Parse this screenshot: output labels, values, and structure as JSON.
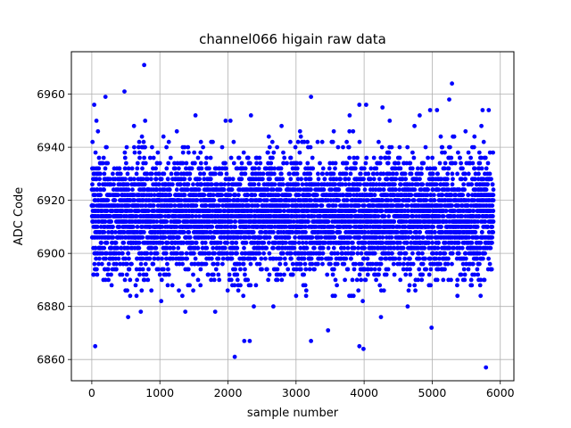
{
  "chart_data": {
    "type": "scatter",
    "title": "channel066 higain raw data",
    "xlabel": "sample number",
    "ylabel": "ADC Code",
    "xlim": [
      -300,
      6200
    ],
    "ylim": [
      6852,
      6976
    ],
    "xticks": [
      0,
      1000,
      2000,
      3000,
      4000,
      5000,
      6000
    ],
    "yticks": [
      6860,
      6880,
      6900,
      6920,
      6940,
      6960
    ],
    "grid": true,
    "marker_color": "#0000ff",
    "series": [
      {
        "n_points": 5900,
        "x_range": [
          0,
          5900
        ],
        "baseline": 6914,
        "spread": 11,
        "quantization_step": 2,
        "outliers": [
          {
            "x": 770,
            "y": 6971
          },
          {
            "x": 480,
            "y": 6961
          },
          {
            "x": 5290,
            "y": 6964
          },
          {
            "x": 3220,
            "y": 6959
          },
          {
            "x": 200,
            "y": 6959
          },
          {
            "x": 5250,
            "y": 6958
          },
          {
            "x": 35,
            "y": 6956
          },
          {
            "x": 3930,
            "y": 6956
          },
          {
            "x": 4030,
            "y": 6956
          },
          {
            "x": 4270,
            "y": 6955
          },
          {
            "x": 5740,
            "y": 6954
          },
          {
            "x": 5830,
            "y": 6954
          },
          {
            "x": 4970,
            "y": 6954
          },
          {
            "x": 5070,
            "y": 6954
          },
          {
            "x": 2100,
            "y": 6861
          },
          {
            "x": 5790,
            "y": 6857
          },
          {
            "x": 50,
            "y": 6865
          },
          {
            "x": 3930,
            "y": 6865
          },
          {
            "x": 3990,
            "y": 6864
          },
          {
            "x": 2240,
            "y": 6867
          },
          {
            "x": 2320,
            "y": 6867
          },
          {
            "x": 3220,
            "y": 6867
          },
          {
            "x": 3470,
            "y": 6871
          },
          {
            "x": 4990,
            "y": 6872
          }
        ]
      }
    ]
  }
}
